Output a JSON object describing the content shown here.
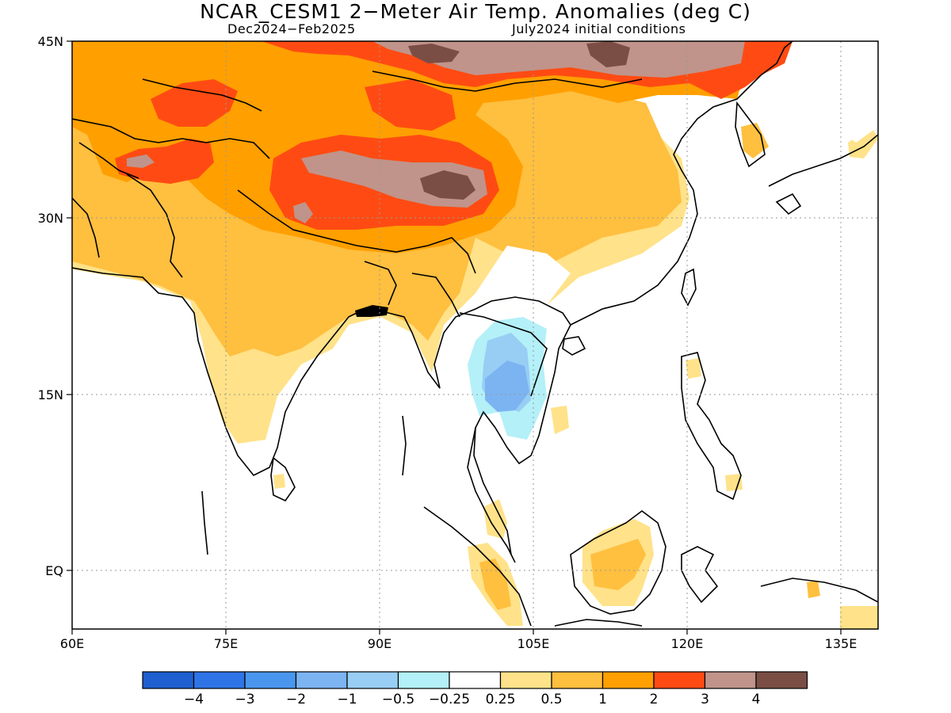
{
  "title": "NCAR_CESM1 2−Meter Air Temp. Anomalies (deg C)",
  "subtitle_left": "Dec2024−Feb2025",
  "subtitle_right": "July2024 initial conditions",
  "lat_labels": [
    "45N",
    "30N",
    "15N",
    "EQ"
  ],
  "lon_labels": [
    "60E",
    "75E",
    "90E",
    "105E",
    "120E",
    "135E"
  ],
  "colorbar": {
    "colors": [
      "#1f5fcf",
      "#2f74e6",
      "#4a96ee",
      "#7cb4f2",
      "#98cdf4",
      "#b4f0f8",
      "#ffffff",
      "#ffe289",
      "#ffbf3f",
      "#ff9f00",
      "#ff4b13",
      "#c0948a",
      "#7a4e45"
    ],
    "labels": [
      "−4",
      "−3",
      "−2",
      "−1",
      "−0.5",
      "−0.25",
      "0.25",
      "0.5",
      "1",
      "2",
      "3",
      "4"
    ]
  }
}
